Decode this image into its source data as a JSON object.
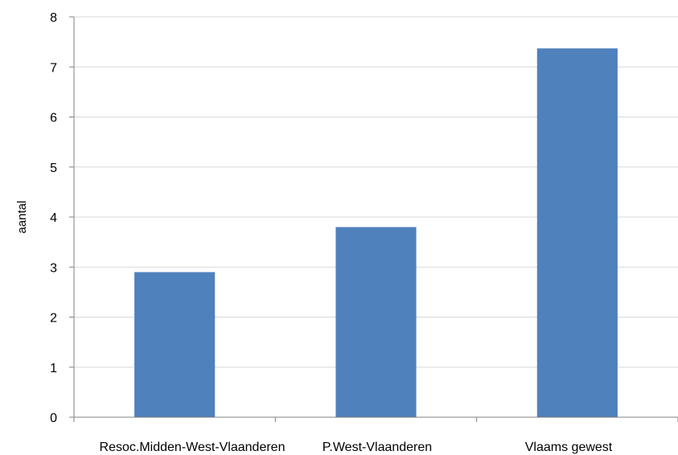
{
  "chart_data": {
    "type": "bar",
    "title": "",
    "xlabel": "",
    "ylabel": "aantal",
    "categories": [
      "Resoc.Midden-West-Vlaanderen",
      "P.West-Vlaanderen",
      "Vlaams gewest"
    ],
    "values": [
      2.9,
      3.8,
      7.37
    ],
    "ylim": [
      0,
      8
    ],
    "yticks": [
      "0",
      "1",
      "2",
      "3",
      "4",
      "5",
      "6",
      "7",
      "8"
    ],
    "grid": true,
    "legend": "none",
    "colors": {
      "bar": "#4F81BD",
      "grid": "#D9D9D9",
      "axis": "#808080"
    }
  }
}
